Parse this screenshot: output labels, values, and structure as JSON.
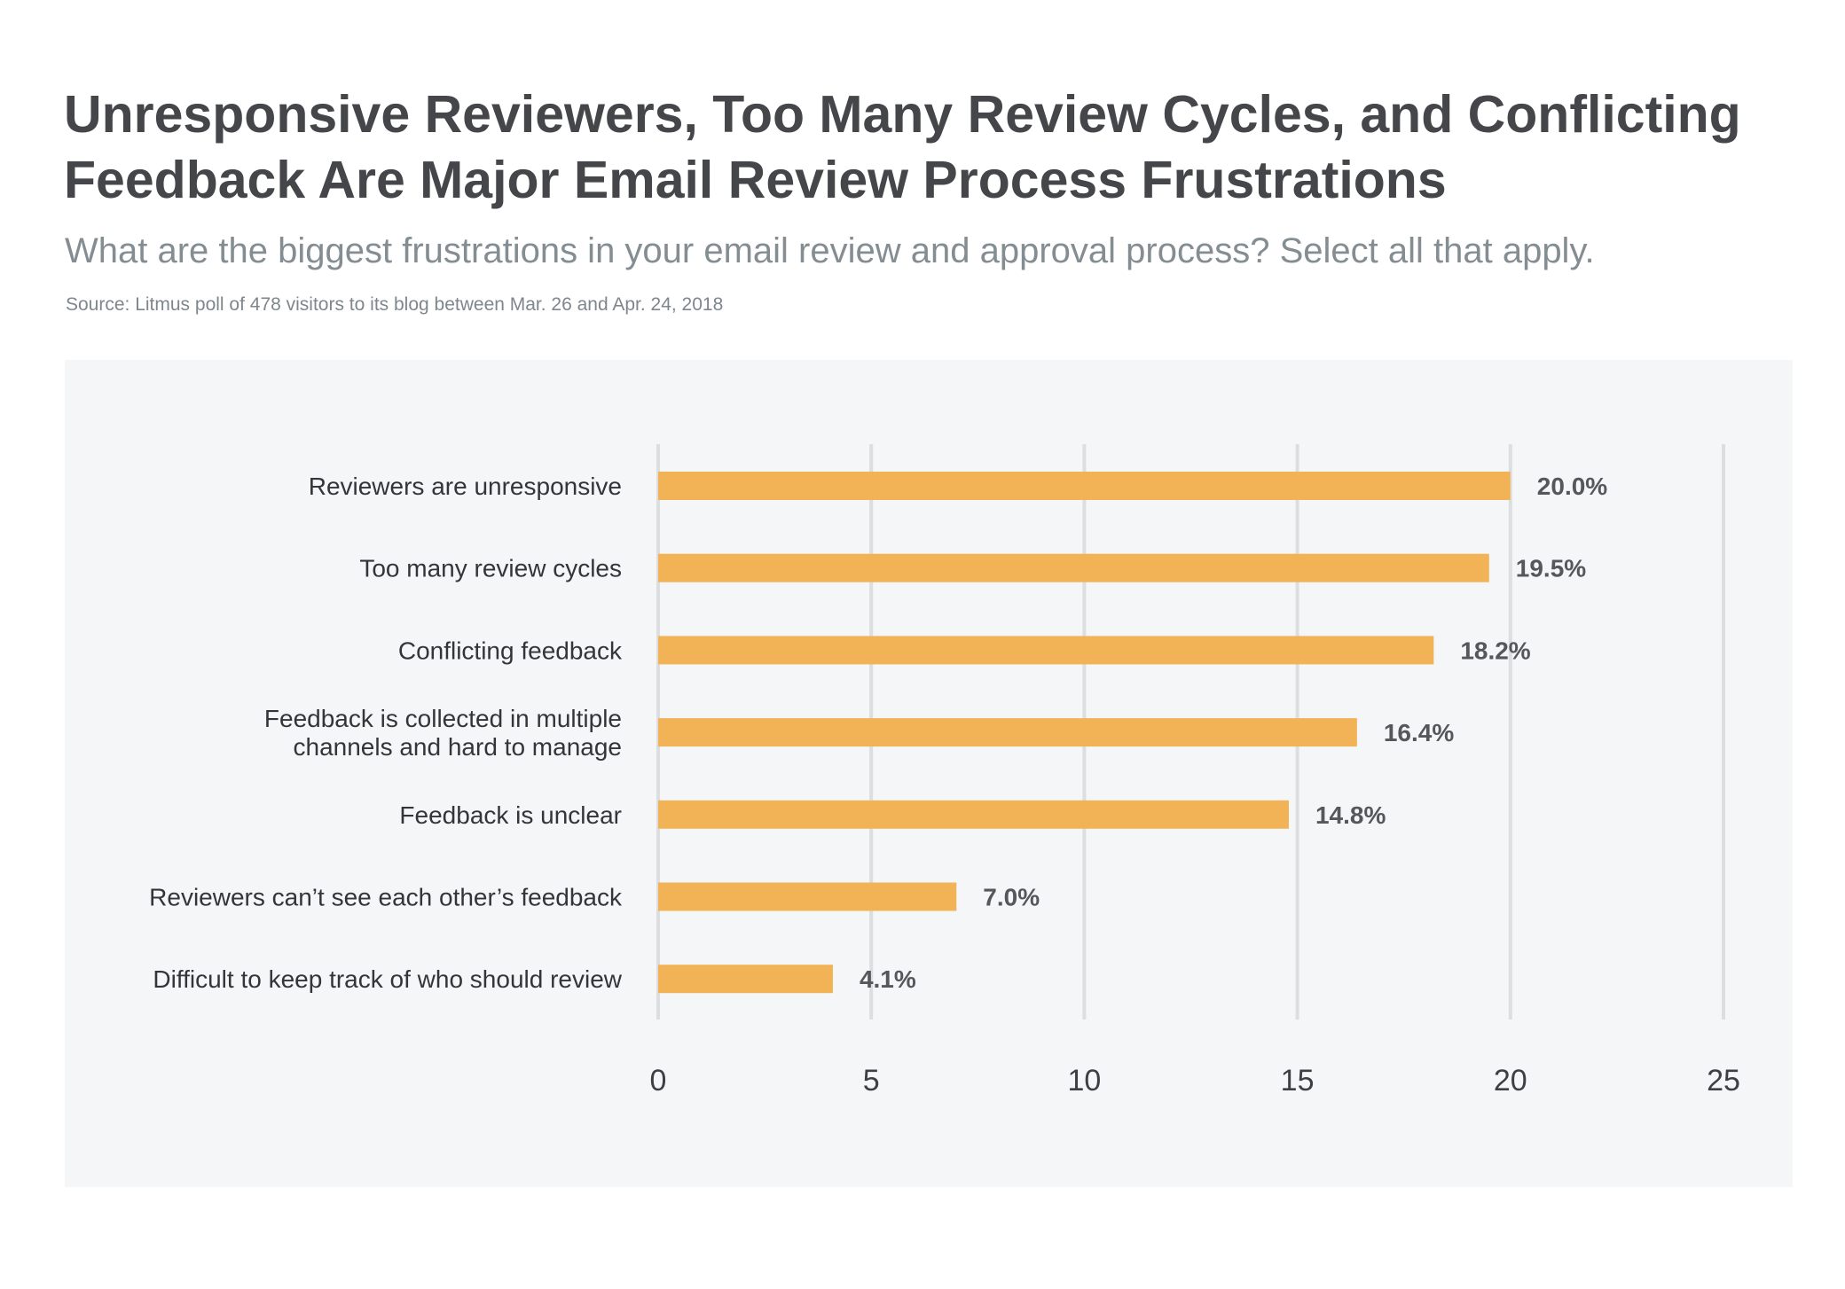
{
  "header": {
    "title": "Unresponsive Reviewers, Too Many Review Cycles, and Conflicting Feedback Are Major Email Review Process Frustrations",
    "subtitle": "What are the biggest frustrations in your email review and approval process? Select all that apply.",
    "source": "Source: Litmus poll of 478 visitors to its blog between Mar. 26 and Apr. 24, 2018"
  },
  "colors": {
    "bar": "#f2b356",
    "gridline": "#dcdee0",
    "panel_background": "#f4f6f8"
  },
  "chart_data": {
    "type": "bar",
    "orientation": "horizontal",
    "categories": [
      [
        "Reviewers are unresponsive"
      ],
      [
        "Too many review cycles"
      ],
      [
        "Conflicting feedback"
      ],
      [
        "Feedback is collected in multiple",
        "channels and hard to manage"
      ],
      [
        "Feedback is unclear"
      ],
      [
        "Reviewers can’t see each other’s feedback"
      ],
      [
        "Difficult to keep track of who should review"
      ]
    ],
    "values": [
      20.0,
      19.5,
      18.2,
      16.4,
      14.8,
      7.0,
      4.1
    ],
    "value_labels": [
      "20.0%",
      "19.5%",
      "18.2%",
      "16.4%",
      "14.8%",
      "7.0%",
      "4.1%"
    ],
    "x_ticks": [
      0,
      5,
      10,
      15,
      20,
      25
    ],
    "x_tick_labels": [
      "0",
      "5",
      "10",
      "15",
      "20",
      "25"
    ],
    "xlim": [
      0,
      25
    ],
    "grid": true,
    "legend": false
  }
}
